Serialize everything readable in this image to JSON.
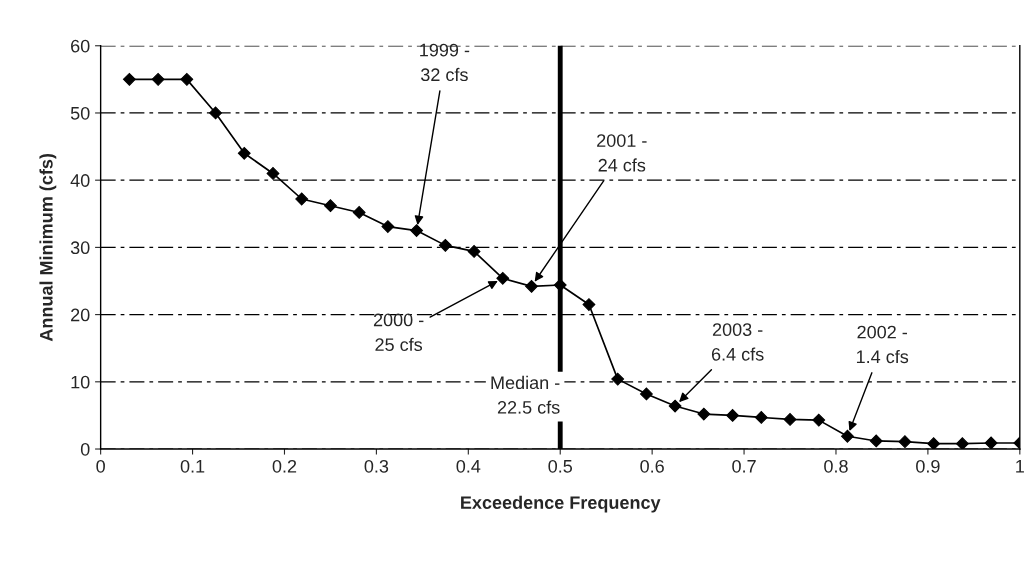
{
  "chart_data": {
    "type": "line",
    "xlabel": "Exceedence Frequency",
    "ylabel": "Annual Minimum (cfs)",
    "x": [
      0.03125,
      0.0625,
      0.09375,
      0.125,
      0.15625,
      0.1875,
      0.21875,
      0.25,
      0.28125,
      0.3125,
      0.34375,
      0.375,
      0.40625,
      0.4375,
      0.46875,
      0.5,
      0.53125,
      0.5625,
      0.59375,
      0.625,
      0.65625,
      0.6875,
      0.71875,
      0.75,
      0.78125,
      0.8125,
      0.84375,
      0.875,
      0.90625,
      0.9375,
      0.96875,
      1.0
    ],
    "series": [
      {
        "color": "#000000",
        "values": [
          55,
          55,
          55,
          50,
          44,
          41,
          37.2,
          36.2,
          35.2,
          33.1,
          32.5,
          30.3,
          29.4,
          25.4,
          24.2,
          24.4,
          21.5,
          10.4,
          8.2,
          6.4,
          5.2,
          5.0,
          4.7,
          4.4,
          4.3,
          1.9,
          1.2,
          1.1,
          0.8,
          0.8,
          0.9,
          0.9
        ]
      }
    ],
    "xlim": [
      0,
      1
    ],
    "ylim": [
      0,
      60
    ],
    "xticks": [
      0,
      0.1,
      0.2,
      0.3,
      0.4,
      0.5,
      0.6,
      0.7,
      0.8,
      0.9,
      1
    ],
    "yticks": [
      0,
      10,
      20,
      30,
      40,
      50,
      60
    ],
    "grid": "y",
    "marker": "diamond",
    "line_style": "solid",
    "ref_lines": [
      {
        "axis": "x",
        "value": 0.5,
        "label": "Median -\n22.5 cfs",
        "color": "#000000"
      }
    ],
    "annotations": [
      {
        "text": "1999 -\n32 cfs",
        "x": 0.34375,
        "y": 32.5
      },
      {
        "text": "2000 -\n25 cfs",
        "x": 0.4375,
        "y": 25.4
      },
      {
        "text": "2001 -\n24 cfs",
        "x": 0.46875,
        "y": 24.2
      },
      {
        "text": "2003 -\n6.4 cfs",
        "x": 0.625,
        "y": 6.4
      },
      {
        "text": "2002 -\n1.4 cfs",
        "x": 0.8125,
        "y": 1.9
      }
    ]
  }
}
